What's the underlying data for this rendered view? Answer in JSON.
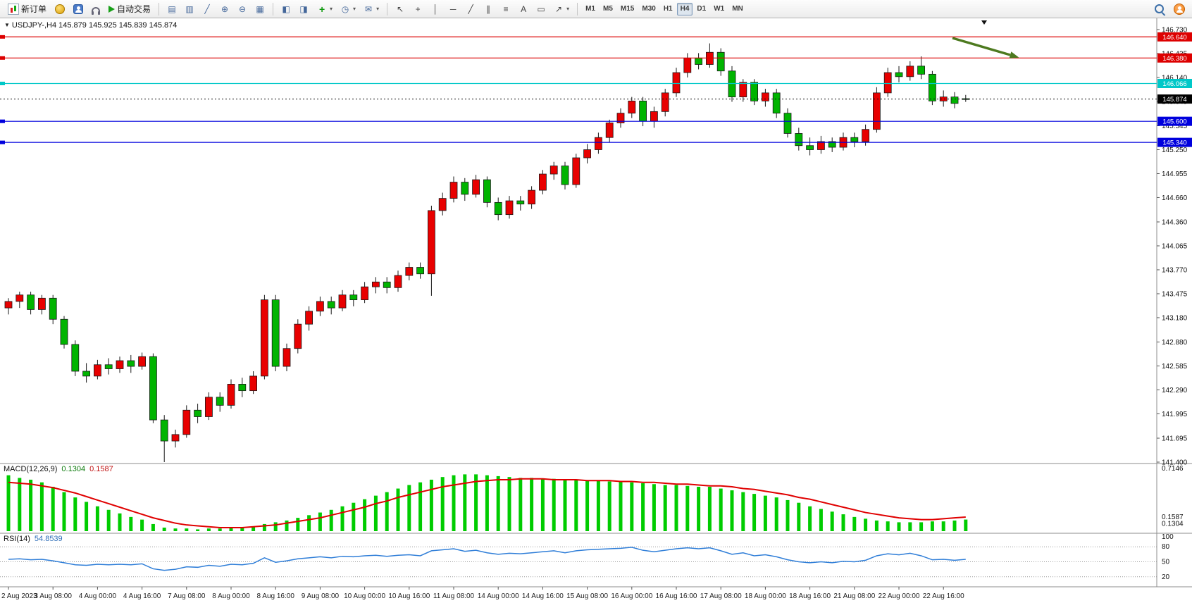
{
  "toolbar": {
    "new_order_label": "新订单",
    "algo_trading_label": "自动交易",
    "timeframes": [
      "M1",
      "M5",
      "M15",
      "M30",
      "H1",
      "H4",
      "D1",
      "W1",
      "MN"
    ],
    "active_timeframe": "H4",
    "quick_icons": [
      {
        "name": "market-depth-icon",
        "css": "ic-coins"
      },
      {
        "name": "community-icon",
        "css": "ic-profile"
      },
      {
        "name": "support-icon",
        "css": "ic-headset"
      }
    ],
    "chart_tool_icons": [
      {
        "name": "bars-chart-icon",
        "glyph": "▤"
      },
      {
        "name": "candlestick-chart-icon",
        "glyph": "▥"
      },
      {
        "name": "line-chart-icon",
        "glyph": "╱"
      },
      {
        "name": "zoom-in-icon",
        "glyph": "⊕"
      },
      {
        "name": "zoom-out-icon",
        "glyph": "⊖"
      },
      {
        "name": "tile-windows-icon",
        "glyph": "▦"
      }
    ],
    "window_icons": [
      {
        "name": "auto-scroll-icon",
        "glyph": "◧"
      },
      {
        "name": "chart-shift-icon",
        "glyph": "◨"
      }
    ],
    "dropdown_tools": [
      {
        "name": "add-indicator-icon",
        "glyph": "+",
        "cls": "green",
        "caret": true
      },
      {
        "name": "period-clock-icon",
        "glyph": "◷",
        "cls": "",
        "caret": true
      },
      {
        "name": "alerts-envelope-icon",
        "glyph": "✉",
        "cls": "",
        "caret": true
      }
    ],
    "draw_tools": [
      {
        "name": "cursor-icon",
        "glyph": "↖",
        "cls": "dark"
      },
      {
        "name": "crosshair-icon",
        "glyph": "+",
        "cls": "dark"
      },
      {
        "name": "vertical-line-icon",
        "glyph": "│",
        "cls": "dark"
      },
      {
        "name": "horizontal-line-icon",
        "glyph": "─",
        "cls": "dark"
      },
      {
        "name": "trendline-icon",
        "glyph": "╱",
        "cls": "dark"
      },
      {
        "name": "channel-icon",
        "glyph": "∥",
        "cls": "dark"
      },
      {
        "name": "fibonacci-icon",
        "glyph": "≡",
        "cls": "dark"
      },
      {
        "name": "text-icon",
        "glyph": "A",
        "cls": "dark"
      },
      {
        "name": "label-icon",
        "glyph": "▭",
        "cls": "dark"
      },
      {
        "name": "arrow-tool-icon",
        "glyph": "↗",
        "cls": "dark",
        "caret": true
      }
    ]
  },
  "chart": {
    "symbol_header": "USDJPY-,H4 145.879 145.925 145.839 145.874"
  },
  "chart_data": {
    "type": "candlestick",
    "symbol": "USDJPY-",
    "period": "H4",
    "ohlc_current": {
      "open": 145.879,
      "high": 145.925,
      "low": 145.839,
      "close": 145.874
    },
    "up_color": "#e80000",
    "down_color": "#00b400",
    "price_axis": {
      "max_value": 146.73,
      "min_value": 141.4,
      "labels": [
        "146.730",
        "146.435",
        "146.140",
        "145.845",
        "145.545",
        "145.250",
        "144.955",
        "144.660",
        "144.360",
        "144.065",
        "143.770",
        "143.475",
        "143.180",
        "142.880",
        "142.585",
        "142.290",
        "141.995",
        "141.695",
        "141.400"
      ]
    },
    "horizontal_lines": [
      {
        "price": 146.64,
        "label": "146.640",
        "color": "#dd0000"
      },
      {
        "price": 146.38,
        "label": "146.380",
        "color": "#dd0000"
      },
      {
        "price": 146.066,
        "label": "146.066",
        "color": "#00c8c8"
      },
      {
        "price": 145.6,
        "label": "145.600",
        "color": "#0000dd"
      },
      {
        "price": 145.34,
        "label": "145.340",
        "color": "#0000dd"
      }
    ],
    "current_price": {
      "value": 145.874,
      "label": "145.874",
      "color": "#000000"
    },
    "annotations": {
      "arrow_color": "#4d7a1f",
      "marker_color": "#111111"
    },
    "time_labels": [
      "2 Aug 2023",
      "3 Aug 08:00",
      "4 Aug 00:00",
      "4 Aug 16:00",
      "7 Aug 08:00",
      "8 Aug 00:00",
      "8 Aug 16:00",
      "9 Aug 08:00",
      "10 Aug 00:00",
      "10 Aug 16:00",
      "11 Aug 08:00",
      "14 Aug 00:00",
      "14 Aug 16:00",
      "15 Aug 08:00",
      "16 Aug 00:00",
      "16 Aug 16:00",
      "17 Aug 08:00",
      "18 Aug 00:00",
      "18 Aug 16:00",
      "21 Aug 08:00",
      "22 Aug 00:00",
      "22 Aug 16:00"
    ],
    "candles": [
      [
        143.3,
        143.42,
        143.22,
        143.38
      ],
      [
        143.38,
        143.5,
        143.3,
        143.46
      ],
      [
        143.46,
        143.5,
        143.22,
        143.28
      ],
      [
        143.28,
        143.46,
        143.22,
        143.42
      ],
      [
        143.42,
        143.46,
        143.1,
        143.16
      ],
      [
        143.16,
        143.2,
        142.8,
        142.85
      ],
      [
        142.85,
        142.9,
        142.46,
        142.52
      ],
      [
        142.52,
        142.62,
        142.38,
        142.46
      ],
      [
        142.46,
        142.66,
        142.42,
        142.6
      ],
      [
        142.6,
        142.68,
        142.48,
        142.55
      ],
      [
        142.55,
        142.7,
        142.5,
        142.65
      ],
      [
        142.65,
        142.72,
        142.5,
        142.58
      ],
      [
        142.58,
        142.75,
        142.54,
        142.7
      ],
      [
        142.7,
        142.74,
        141.88,
        141.92
      ],
      [
        141.92,
        141.98,
        141.4,
        141.66
      ],
      [
        141.66,
        141.8,
        141.58,
        141.74
      ],
      [
        141.74,
        142.1,
        141.7,
        142.04
      ],
      [
        142.04,
        142.12,
        141.88,
        141.96
      ],
      [
        141.96,
        142.26,
        141.92,
        142.2
      ],
      [
        142.2,
        142.26,
        142.02,
        142.1
      ],
      [
        142.1,
        142.42,
        142.06,
        142.36
      ],
      [
        142.36,
        142.44,
        142.2,
        142.28
      ],
      [
        142.28,
        142.52,
        142.24,
        142.46
      ],
      [
        142.46,
        143.46,
        142.42,
        143.4
      ],
      [
        143.4,
        143.46,
        142.52,
        142.58
      ],
      [
        142.58,
        142.86,
        142.52,
        142.8
      ],
      [
        142.8,
        143.16,
        142.74,
        143.1
      ],
      [
        143.1,
        143.32,
        143.02,
        143.26
      ],
      [
        143.26,
        143.44,
        143.2,
        143.38
      ],
      [
        143.38,
        143.44,
        143.22,
        143.3
      ],
      [
        143.3,
        143.52,
        143.26,
        143.46
      ],
      [
        143.46,
        143.52,
        143.32,
        143.4
      ],
      [
        143.4,
        143.62,
        143.36,
        143.56
      ],
      [
        143.56,
        143.68,
        143.48,
        143.62
      ],
      [
        143.62,
        143.68,
        143.48,
        143.55
      ],
      [
        143.55,
        143.76,
        143.5,
        143.7
      ],
      [
        143.7,
        143.86,
        143.64,
        143.8
      ],
      [
        143.8,
        143.86,
        143.66,
        143.72
      ],
      [
        143.72,
        144.56,
        143.45,
        144.5
      ],
      [
        144.5,
        144.72,
        144.44,
        144.65
      ],
      [
        144.65,
        144.92,
        144.6,
        144.85
      ],
      [
        144.85,
        144.9,
        144.62,
        144.7
      ],
      [
        144.7,
        144.94,
        144.66,
        144.88
      ],
      [
        144.88,
        144.92,
        144.54,
        144.6
      ],
      [
        144.6,
        144.66,
        144.38,
        144.45
      ],
      [
        144.45,
        144.68,
        144.4,
        144.62
      ],
      [
        144.62,
        144.68,
        144.5,
        144.58
      ],
      [
        144.58,
        144.8,
        144.52,
        144.75
      ],
      [
        144.75,
        145.0,
        144.7,
        144.95
      ],
      [
        144.95,
        145.1,
        144.88,
        145.05
      ],
      [
        145.05,
        145.1,
        144.76,
        144.82
      ],
      [
        144.82,
        145.2,
        144.78,
        145.15
      ],
      [
        145.15,
        145.32,
        145.08,
        145.25
      ],
      [
        145.25,
        145.46,
        145.2,
        145.4
      ],
      [
        145.4,
        145.62,
        145.34,
        145.58
      ],
      [
        145.58,
        145.76,
        145.52,
        145.7
      ],
      [
        145.7,
        145.9,
        145.64,
        145.85
      ],
      [
        145.85,
        145.9,
        145.54,
        145.6
      ],
      [
        145.6,
        145.78,
        145.52,
        145.72
      ],
      [
        145.72,
        146.0,
        145.66,
        145.95
      ],
      [
        145.95,
        146.26,
        145.9,
        146.2
      ],
      [
        146.2,
        146.44,
        146.14,
        146.38
      ],
      [
        146.38,
        146.44,
        146.24,
        146.3
      ],
      [
        146.3,
        146.56,
        146.26,
        146.45
      ],
      [
        146.45,
        146.5,
        146.16,
        146.22
      ],
      [
        146.22,
        146.28,
        145.84,
        145.9
      ],
      [
        145.9,
        146.12,
        145.84,
        146.08
      ],
      [
        146.08,
        146.12,
        145.8,
        145.85
      ],
      [
        145.85,
        146.0,
        145.78,
        145.95
      ],
      [
        145.95,
        146.0,
        145.64,
        145.7
      ],
      [
        145.7,
        145.76,
        145.4,
        145.45
      ],
      [
        145.45,
        145.52,
        145.24,
        145.3
      ],
      [
        145.3,
        145.4,
        145.18,
        145.25
      ],
      [
        145.25,
        145.42,
        145.2,
        145.35
      ],
      [
        145.35,
        145.4,
        145.22,
        145.28
      ],
      [
        145.28,
        145.46,
        145.24,
        145.4
      ],
      [
        145.4,
        145.46,
        145.28,
        145.35
      ],
      [
        145.35,
        145.56,
        145.3,
        145.5
      ],
      [
        145.5,
        146.02,
        145.46,
        145.95
      ],
      [
        145.95,
        146.26,
        145.9,
        146.2
      ],
      [
        146.2,
        146.28,
        146.08,
        146.15
      ],
      [
        146.15,
        146.34,
        146.1,
        146.28
      ],
      [
        146.28,
        146.4,
        146.12,
        146.18
      ],
      [
        146.18,
        146.22,
        145.8,
        145.85
      ],
      [
        145.85,
        145.98,
        145.78,
        145.9
      ],
      [
        145.9,
        145.96,
        145.76,
        145.82
      ],
      [
        145.879,
        145.925,
        145.839,
        145.874
      ]
    ],
    "macd": {
      "name": "MACD(12,26,9)",
      "value_label": "0.1304",
      "signal_label": "0.1587",
      "value": 0.1304,
      "signal_value": 0.1587,
      "axis_top_label": "0.7146",
      "axis_top_value": 0.7146,
      "hist_color": "#00cc00",
      "signal_color": "#e00000",
      "histogram": [
        0.63,
        0.6,
        0.58,
        0.55,
        0.5,
        0.44,
        0.38,
        0.33,
        0.28,
        0.24,
        0.2,
        0.16,
        0.13,
        0.08,
        0.04,
        0.03,
        0.03,
        0.02,
        0.03,
        0.03,
        0.04,
        0.04,
        0.05,
        0.08,
        0.1,
        0.12,
        0.15,
        0.18,
        0.21,
        0.24,
        0.28,
        0.32,
        0.36,
        0.4,
        0.44,
        0.48,
        0.52,
        0.55,
        0.58,
        0.61,
        0.63,
        0.64,
        0.64,
        0.63,
        0.62,
        0.61,
        0.6,
        0.6,
        0.59,
        0.59,
        0.58,
        0.58,
        0.57,
        0.57,
        0.56,
        0.56,
        0.55,
        0.54,
        0.53,
        0.52,
        0.52,
        0.51,
        0.5,
        0.5,
        0.48,
        0.46,
        0.44,
        0.42,
        0.4,
        0.38,
        0.35,
        0.32,
        0.28,
        0.25,
        0.22,
        0.19,
        0.16,
        0.14,
        0.12,
        0.11,
        0.1,
        0.1,
        0.1,
        0.11,
        0.11,
        0.12,
        0.1304
      ],
      "signal": [
        0.55,
        0.54,
        0.53,
        0.51,
        0.49,
        0.46,
        0.43,
        0.39,
        0.35,
        0.31,
        0.27,
        0.23,
        0.19,
        0.15,
        0.12,
        0.09,
        0.07,
        0.06,
        0.05,
        0.04,
        0.04,
        0.04,
        0.05,
        0.06,
        0.07,
        0.09,
        0.11,
        0.13,
        0.15,
        0.18,
        0.21,
        0.24,
        0.27,
        0.31,
        0.34,
        0.38,
        0.41,
        0.44,
        0.47,
        0.5,
        0.52,
        0.54,
        0.56,
        0.57,
        0.58,
        0.58,
        0.59,
        0.59,
        0.59,
        0.58,
        0.58,
        0.58,
        0.57,
        0.57,
        0.57,
        0.56,
        0.56,
        0.55,
        0.55,
        0.54,
        0.53,
        0.53,
        0.52,
        0.51,
        0.51,
        0.5,
        0.48,
        0.47,
        0.45,
        0.43,
        0.41,
        0.38,
        0.36,
        0.33,
        0.3,
        0.27,
        0.24,
        0.21,
        0.19,
        0.17,
        0.15,
        0.14,
        0.13,
        0.13,
        0.14,
        0.15,
        0.1587
      ]
    },
    "rsi": {
      "name": "RSI(14)",
      "value_label": "54.8539",
      "value": 54.8539,
      "line_color": "#2f7ed8",
      "axis_labels": [
        "100",
        "80",
        "50",
        "20"
      ],
      "levels": [
        80,
        50,
        20
      ],
      "values": [
        55,
        56,
        54,
        55,
        52,
        48,
        44,
        43,
        45,
        44,
        45,
        44,
        46,
        36,
        33,
        35,
        40,
        39,
        43,
        41,
        45,
        44,
        47,
        58,
        49,
        52,
        56,
        58,
        60,
        58,
        61,
        60,
        62,
        63,
        61,
        63,
        64,
        62,
        72,
        74,
        76,
        71,
        73,
        68,
        65,
        67,
        66,
        68,
        70,
        72,
        68,
        72,
        74,
        75,
        76,
        77,
        79,
        73,
        70,
        73,
        76,
        78,
        76,
        78,
        72,
        65,
        68,
        62,
        64,
        60,
        54,
        50,
        48,
        50,
        48,
        51,
        50,
        53,
        62,
        66,
        64,
        67,
        62,
        54,
        55,
        53,
        54.8539
      ]
    }
  }
}
